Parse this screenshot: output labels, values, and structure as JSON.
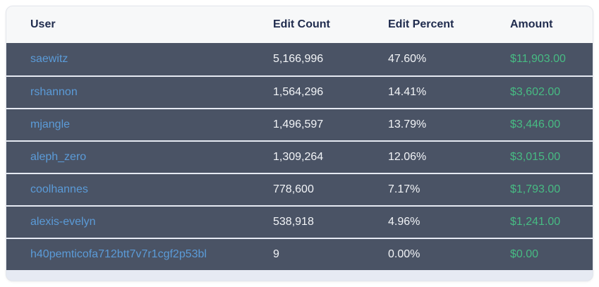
{
  "table": {
    "columns": [
      {
        "key": "user",
        "label": "User"
      },
      {
        "key": "edit_count",
        "label": "Edit Count"
      },
      {
        "key": "edit_percent",
        "label": "Edit Percent"
      },
      {
        "key": "amount",
        "label": "Amount"
      }
    ],
    "rows": [
      {
        "user": "saewitz",
        "edit_count": "5,166,996",
        "edit_percent": "47.60%",
        "amount": "$11,903.00"
      },
      {
        "user": "rshannon",
        "edit_count": "1,564,296",
        "edit_percent": "14.41%",
        "amount": "$3,602.00"
      },
      {
        "user": "mjangle",
        "edit_count": "1,496,597",
        "edit_percent": "13.79%",
        "amount": "$3,446.00"
      },
      {
        "user": "aleph_zero",
        "edit_count": "1,309,264",
        "edit_percent": "12.06%",
        "amount": "$3,015.00"
      },
      {
        "user": "coolhannes",
        "edit_count": "778,600",
        "edit_percent": "7.17%",
        "amount": "$1,793.00"
      },
      {
        "user": "alexis-evelyn",
        "edit_count": "538,918",
        "edit_percent": "4.96%",
        "amount": "$1,241.00"
      },
      {
        "user": "h40pemticofa712btt7v7r1cgf2p53bl",
        "edit_count": "9",
        "edit_percent": "0.00%",
        "amount": "$0.00"
      }
    ]
  },
  "colors": {
    "page_bg": "#ffffff",
    "container_border": "#e3e6ec",
    "header_bg": "#f7f8f9",
    "header_text": "#202c4e",
    "row_bg": "#4a5365",
    "row_separator": "#e6eaf3",
    "user_link": "#5b9bd8",
    "cell_text": "#f2f4f7",
    "amount_green": "#47bb83"
  }
}
